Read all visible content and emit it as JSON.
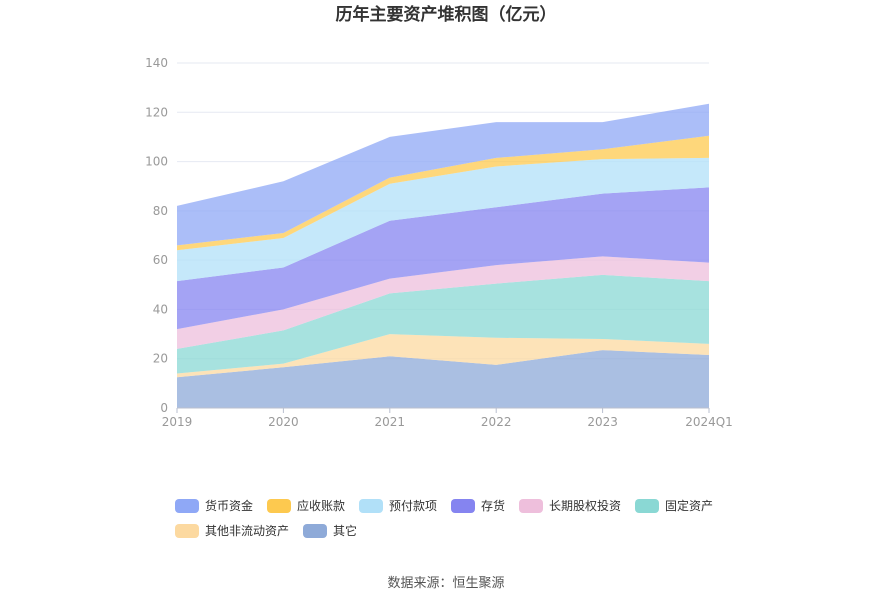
{
  "chart_data": {
    "type": "area",
    "stacked": true,
    "title": "历年主要资产堆积图（亿元）",
    "xlabel": "",
    "ylabel": "",
    "categories": [
      "2019",
      "2020",
      "2021",
      "2022",
      "2023",
      "2024Q1"
    ],
    "ylim": [
      0,
      140
    ],
    "yticks": [
      0,
      20,
      40,
      60,
      80,
      100,
      120,
      140
    ],
    "grid": true,
    "legend_position": "bottom",
    "series": [
      {
        "name": "其它",
        "color": "#8eaad8",
        "values": [
          12.5,
          16.5,
          21.0,
          17.5,
          23.5,
          21.5
        ]
      },
      {
        "name": "其他非流动资产",
        "color": "#fcd9a0",
        "values": [
          1.5,
          1.5,
          9.0,
          11.0,
          4.5,
          4.5
        ]
      },
      {
        "name": "固定资产",
        "color": "#8ad8d4",
        "values": [
          10.0,
          13.5,
          16.5,
          22.0,
          26.0,
          25.5
        ]
      },
      {
        "name": "长期股权投资",
        "color": "#eebfdc",
        "values": [
          8.0,
          8.5,
          6.0,
          7.5,
          7.5,
          7.5
        ]
      },
      {
        "name": "存货",
        "color": "#8584f0",
        "values": [
          19.5,
          17.0,
          23.5,
          23.5,
          25.5,
          30.5
        ]
      },
      {
        "name": "预付款项",
        "color": "#b1e0f8",
        "values": [
          12.5,
          12.0,
          15.0,
          16.5,
          14.0,
          12.0
        ]
      },
      {
        "name": "应收账款",
        "color": "#fdc94f",
        "values": [
          2.0,
          2.0,
          2.5,
          3.5,
          4.0,
          9.0
        ]
      },
      {
        "name": "货币资金",
        "color": "#8fa8f6",
        "values": [
          16.0,
          21.0,
          16.5,
          14.5,
          11.0,
          13.0
        ]
      }
    ],
    "legend_order": [
      "货币资金",
      "应收账款",
      "预付款项",
      "存货",
      "长期股权投资",
      "固定资产",
      "其他非流动资产",
      "其它"
    ],
    "source": "数据来源：恒生聚源"
  }
}
